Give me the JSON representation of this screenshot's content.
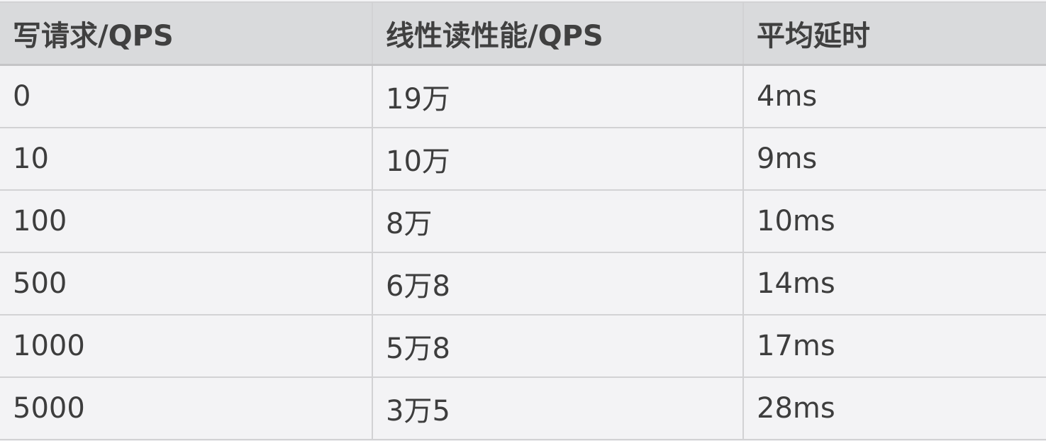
{
  "table": {
    "headers": [
      "写请求/QPS",
      "线性读性能/QPS",
      "平均延时"
    ],
    "rows": [
      [
        "0",
        "19万",
        "4ms"
      ],
      [
        "10",
        "10万",
        "9ms"
      ],
      [
        "100",
        "8万",
        "10ms"
      ],
      [
        "500",
        "6万8",
        "14ms"
      ],
      [
        "1000",
        "5万8",
        "17ms"
      ],
      [
        "5000",
        "3万5",
        "28ms"
      ]
    ]
  }
}
